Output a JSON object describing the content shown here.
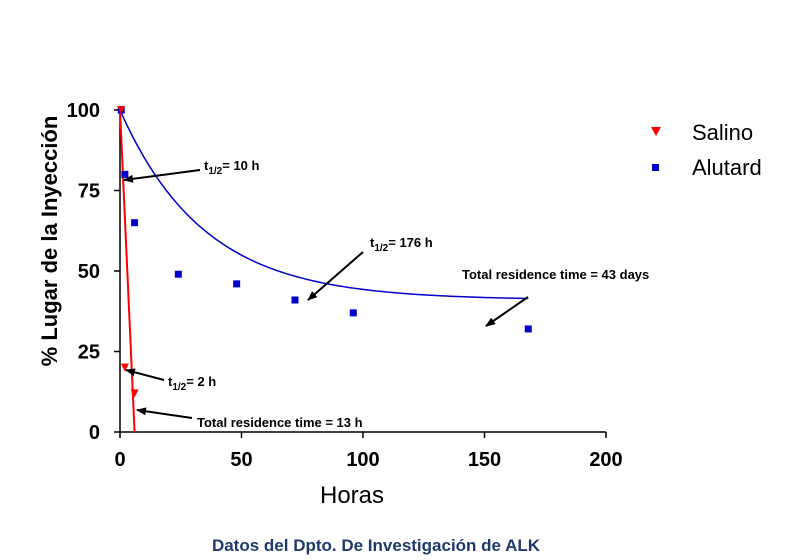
{
  "chart_data": {
    "type": "scatter",
    "xlabel": "Horas",
    "ylabel": "% Lugar de la Inyección",
    "xlim": [
      0,
      200
    ],
    "ylim": [
      0,
      100
    ],
    "xticks": [
      "0",
      "50",
      "100",
      "150",
      "200"
    ],
    "yticks": [
      "0",
      "25",
      "50",
      "75",
      "100"
    ],
    "legend_position": "top-right",
    "series": [
      {
        "name": "Salino",
        "color": "#ff0000",
        "marker": "triangle-down",
        "x": [
          0.5,
          2,
          6
        ],
        "y": [
          100,
          20,
          12
        ],
        "fit_line": {
          "x": [
            0,
            6
          ],
          "y": [
            100,
            0
          ]
        }
      },
      {
        "name": "Alutard",
        "color": "#0000cc",
        "marker": "square",
        "x": [
          0.5,
          2,
          6,
          24,
          48,
          72,
          96,
          168
        ],
        "y": [
          100,
          80,
          65,
          49,
          46,
          41,
          37,
          32
        ],
        "fit_curve": {
          "x_end": 168,
          "plateau": 41,
          "half_life": 24
        }
      }
    ],
    "annotations": [
      {
        "sub": "1/2",
        "text": "= 10 h"
      },
      {
        "sub": "1/2",
        "text": "= 176 h"
      },
      {
        "sub": "1/2",
        "text": "= 2 h"
      },
      {
        "text": "Total residence time = 43 days"
      },
      {
        "text": "Total residence time = 13 h"
      }
    ]
  },
  "caption": "Datos del Dpto. De Investigación de ALK"
}
